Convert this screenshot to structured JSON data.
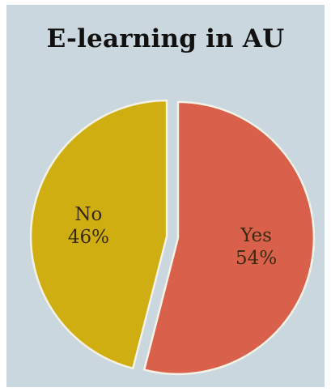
{
  "chart_data": {
    "type": "pie",
    "title": "E-learning in AU",
    "slices": [
      {
        "label": "Yes",
        "value": 54,
        "value_text": "54%",
        "color": "#d9604a"
      },
      {
        "label": "No",
        "value": 46,
        "value_text": "46%",
        "color": "#cfae12"
      }
    ],
    "exploded": true,
    "background_color": "#cbd7df"
  }
}
